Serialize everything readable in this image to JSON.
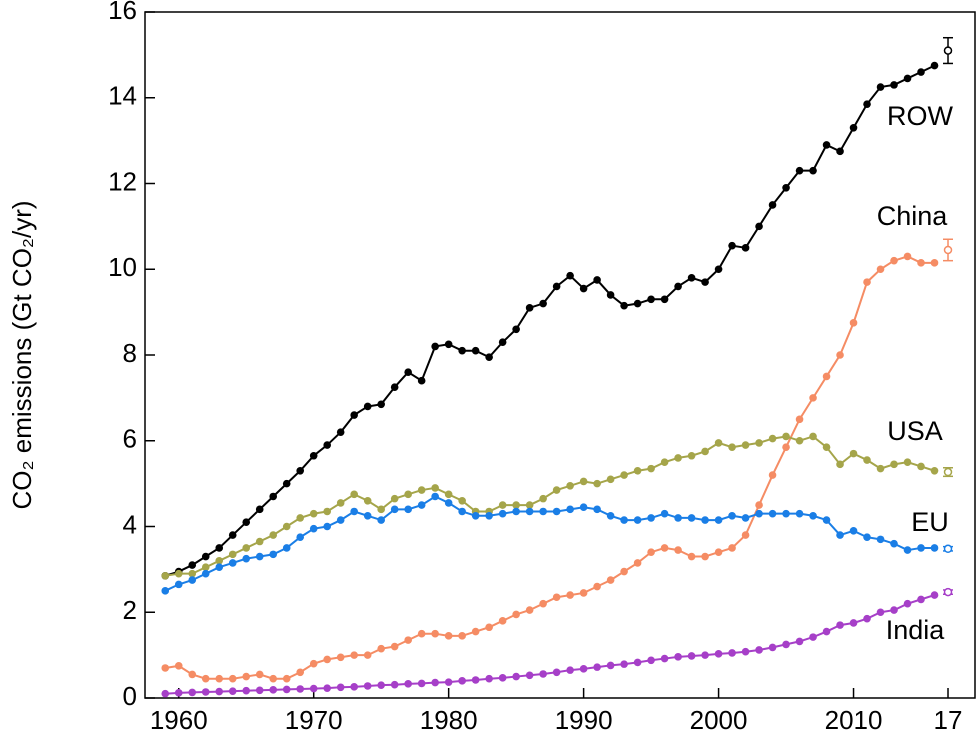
{
  "chart_data": {
    "type": "line",
    "y_label": "CO₂ emissions (Gt CO₂/yr)",
    "x": [
      1959,
      1960,
      1961,
      1962,
      1963,
      1964,
      1965,
      1966,
      1967,
      1968,
      1969,
      1970,
      1971,
      1972,
      1973,
      1974,
      1975,
      1976,
      1977,
      1978,
      1979,
      1980,
      1981,
      1982,
      1983,
      1984,
      1985,
      1986,
      1987,
      1988,
      1989,
      1990,
      1991,
      1992,
      1993,
      1994,
      1995,
      1996,
      1997,
      1998,
      1999,
      2000,
      2001,
      2002,
      2003,
      2004,
      2005,
      2006,
      2007,
      2008,
      2009,
      2010,
      2011,
      2012,
      2013,
      2014,
      2015,
      2016
    ],
    "projection_x": 2017,
    "series": [
      {
        "name": "ROW",
        "color": "#000000",
        "projection": 15.1,
        "projection_error": 0.3,
        "values": [
          2.85,
          2.95,
          3.1,
          3.3,
          3.5,
          3.8,
          4.1,
          4.4,
          4.7,
          5.0,
          5.3,
          5.65,
          5.9,
          6.2,
          6.6,
          6.8,
          6.85,
          7.25,
          7.6,
          7.4,
          8.2,
          8.25,
          8.1,
          8.1,
          7.95,
          8.3,
          8.6,
          9.1,
          9.2,
          9.6,
          9.85,
          9.55,
          9.75,
          9.4,
          9.15,
          9.2,
          9.3,
          9.3,
          9.6,
          9.8,
          9.7,
          10.0,
          10.55,
          10.5,
          11.0,
          11.5,
          11.9,
          12.3,
          12.3,
          12.9,
          12.75,
          13.3,
          13.85,
          14.25,
          14.3,
          14.45,
          14.6,
          14.75
        ]
      },
      {
        "name": "China",
        "color": "#f58c64",
        "projection": 10.45,
        "projection_error": 0.25,
        "values": [
          0.7,
          0.75,
          0.55,
          0.45,
          0.45,
          0.45,
          0.5,
          0.55,
          0.45,
          0.45,
          0.6,
          0.8,
          0.9,
          0.95,
          1.0,
          1.0,
          1.15,
          1.2,
          1.35,
          1.5,
          1.5,
          1.45,
          1.45,
          1.55,
          1.65,
          1.8,
          1.95,
          2.05,
          2.2,
          2.35,
          2.4,
          2.45,
          2.6,
          2.75,
          2.95,
          3.15,
          3.4,
          3.5,
          3.45,
          3.3,
          3.3,
          3.4,
          3.5,
          3.8,
          4.5,
          5.2,
          5.85,
          6.5,
          7.0,
          7.5,
          8.0,
          8.75,
          9.7,
          10.0,
          10.2,
          10.3,
          10.15,
          10.15
        ]
      },
      {
        "name": "USA",
        "color": "#a5a54a",
        "projection": 5.27,
        "projection_error": 0.1,
        "values": [
          2.85,
          2.9,
          2.9,
          3.05,
          3.2,
          3.35,
          3.5,
          3.65,
          3.8,
          4.0,
          4.2,
          4.3,
          4.35,
          4.55,
          4.75,
          4.6,
          4.4,
          4.65,
          4.75,
          4.85,
          4.9,
          4.75,
          4.6,
          4.35,
          4.35,
          4.5,
          4.5,
          4.5,
          4.65,
          4.85,
          4.95,
          5.05,
          5.0,
          5.1,
          5.2,
          5.3,
          5.35,
          5.5,
          5.6,
          5.65,
          5.75,
          5.95,
          5.85,
          5.9,
          5.95,
          6.05,
          6.1,
          6.0,
          6.1,
          5.85,
          5.45,
          5.7,
          5.55,
          5.35,
          5.45,
          5.5,
          5.4,
          5.3
        ]
      },
      {
        "name": "EU",
        "color": "#1a7ee6",
        "projection": 3.48,
        "projection_error": 0.05,
        "values": [
          2.5,
          2.65,
          2.75,
          2.9,
          3.05,
          3.15,
          3.25,
          3.3,
          3.35,
          3.5,
          3.75,
          3.95,
          4.0,
          4.15,
          4.35,
          4.25,
          4.15,
          4.4,
          4.4,
          4.5,
          4.7,
          4.55,
          4.35,
          4.25,
          4.25,
          4.3,
          4.35,
          4.35,
          4.35,
          4.35,
          4.4,
          4.45,
          4.4,
          4.25,
          4.15,
          4.15,
          4.2,
          4.3,
          4.2,
          4.2,
          4.15,
          4.15,
          4.25,
          4.2,
          4.3,
          4.3,
          4.3,
          4.3,
          4.25,
          4.15,
          3.8,
          3.9,
          3.75,
          3.7,
          3.6,
          3.45,
          3.5,
          3.5
        ]
      },
      {
        "name": "India",
        "color": "#a63fc8",
        "projection": 2.47,
        "projection_error": 0.05,
        "values": [
          0.1,
          0.12,
          0.13,
          0.14,
          0.15,
          0.16,
          0.17,
          0.18,
          0.19,
          0.2,
          0.21,
          0.22,
          0.23,
          0.25,
          0.26,
          0.28,
          0.3,
          0.31,
          0.33,
          0.34,
          0.36,
          0.37,
          0.4,
          0.42,
          0.45,
          0.47,
          0.5,
          0.53,
          0.56,
          0.6,
          0.65,
          0.68,
          0.72,
          0.76,
          0.79,
          0.83,
          0.88,
          0.92,
          0.96,
          0.98,
          1.0,
          1.03,
          1.05,
          1.08,
          1.12,
          1.18,
          1.25,
          1.32,
          1.42,
          1.55,
          1.7,
          1.75,
          1.85,
          2.0,
          2.05,
          2.2,
          2.3,
          2.4
        ]
      }
    ],
    "xlim": [
      1957.5,
      2019
    ],
    "xticks": [
      1960,
      1970,
      1980,
      1990,
      2000,
      2010,
      {
        "value": 2017,
        "label": "17"
      }
    ],
    "ylim": [
      0,
      16
    ],
    "yticks": [
      0,
      2,
      4,
      6,
      8,
      10,
      12,
      14,
      16
    ]
  }
}
